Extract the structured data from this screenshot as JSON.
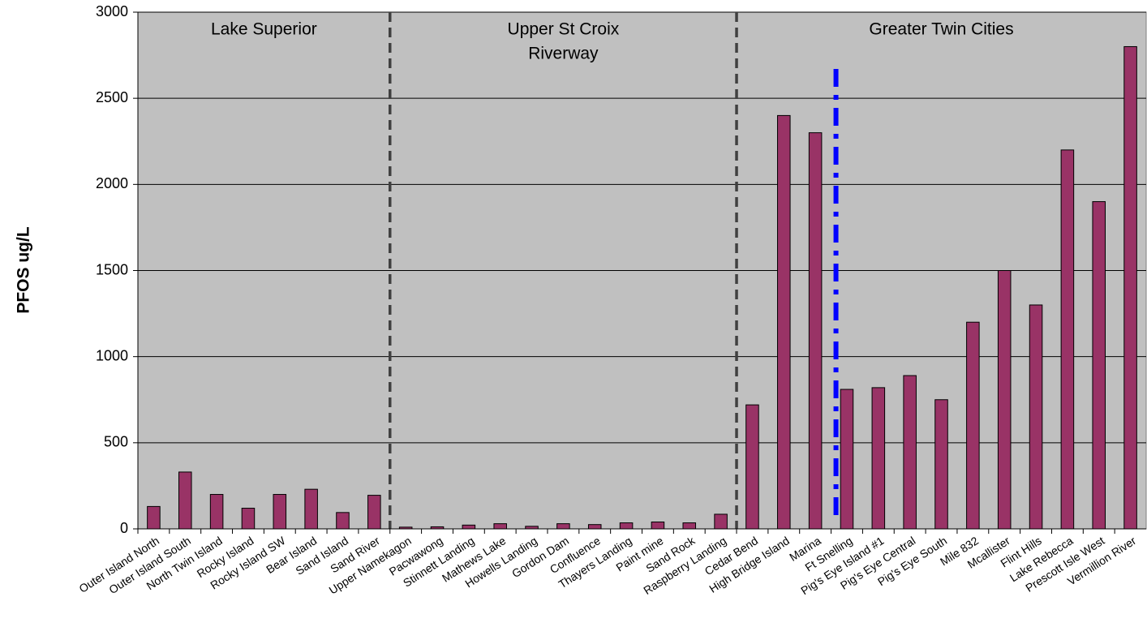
{
  "chart_data": {
    "type": "bar",
    "y_label": "PFOS ug/L",
    "regions": [
      [
        "Lake Superior"
      ],
      [
        "Upper St Croix",
        "Riverway"
      ],
      [
        "Greater Twin Cities"
      ]
    ],
    "categories": [
      "Outer Island North",
      "Outer Island South",
      "North Twin Island",
      "Rocky Island",
      "Rocky Island SW",
      "Bear Island",
      "Sand Island",
      "Sand River",
      "Upper Namekagon",
      "Pacwawong",
      "Stinnett Landing",
      "Mathews Lake",
      "Howells Landing",
      "Gordon Dam",
      "Confluence",
      "Thayers Landing",
      "Paint mine",
      "Sand Rock",
      "Raspberry Landing",
      "Cedar Bend",
      "High Bridge Island",
      "Marina",
      "Ft Snelling",
      "Pig's Eye Island #1",
      "Pig's Eye Central",
      "Pig's Eye South",
      "Mile 832",
      "Mcallister",
      "Flint Hills",
      "Lake Rebecca",
      "Prescott Isle West",
      "Vermillion River"
    ],
    "values": [
      130,
      330,
      200,
      120,
      200,
      230,
      95,
      195,
      10,
      12,
      22,
      30,
      15,
      30,
      25,
      35,
      40,
      35,
      85,
      720,
      2400,
      2300,
      810,
      820,
      890,
      750,
      1200,
      1500,
      1300,
      2200,
      1900,
      2800
    ],
    "color": "#993366",
    "ylim": [
      0,
      3000
    ],
    "yticks": [
      0,
      500,
      1000,
      1500,
      2000,
      2500,
      3000
    ],
    "grid": true
  }
}
